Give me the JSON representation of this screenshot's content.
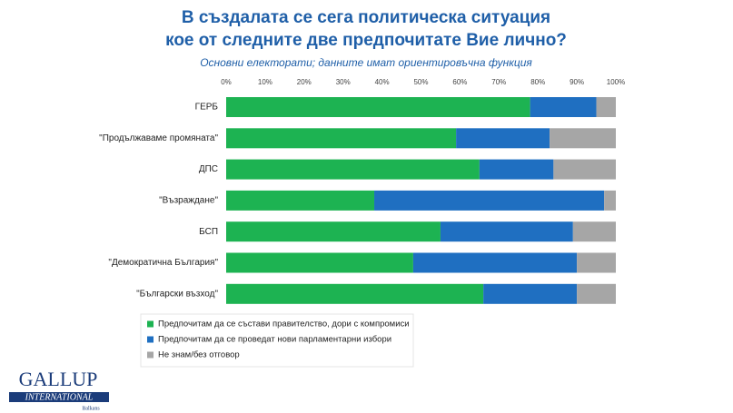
{
  "chart_data": {
    "type": "stacked-bar-horizontal",
    "title": [
      "В създалата се сега политическа ситуация",
      "кое от следните две предпочитате Вие лично?"
    ],
    "subtitle": "Основни електорати; данните имат ориентировъчна функция",
    "categories": [
      "ГЕРБ",
      "\"Продължаваме промяната\"",
      "ДПС",
      "\"Възраждане\"",
      "БСП",
      "\"Демократична България\"",
      "\"Български възход\""
    ],
    "series": [
      {
        "name": "Предпочитам да се състави правителство, дори с компромиси",
        "color": "#1db352",
        "values": [
          78,
          59,
          65,
          38,
          55,
          48,
          66
        ]
      },
      {
        "name": "Предпочитам да се проведат нови парламентарни избори",
        "color": "#1f6fc1",
        "values": [
          17,
          24,
          19,
          59,
          34,
          42,
          24
        ]
      },
      {
        "name": "Не знам/без отговор",
        "color": "#a6a6a6",
        "values": [
          5,
          17,
          16,
          3,
          11,
          10,
          10
        ]
      }
    ],
    "xlim": [
      0,
      100
    ],
    "xticks": [
      {
        "value": 0,
        "label": "0%"
      },
      {
        "value": 10,
        "label": "10%"
      },
      {
        "value": 20,
        "label": "20%"
      },
      {
        "value": 30,
        "label": "30%"
      },
      {
        "value": 40,
        "label": "40%"
      },
      {
        "value": 50,
        "label": "50%"
      },
      {
        "value": 60,
        "label": "60%"
      },
      {
        "value": 70,
        "label": "70%"
      },
      {
        "value": 80,
        "label": "80%"
      },
      {
        "value": 90,
        "label": "90%"
      },
      {
        "value": 100,
        "label": "100%"
      }
    ],
    "grid": false,
    "legend": "bottom"
  },
  "logo": {
    "name": "GALLUP",
    "band": "INTERNATIONAL",
    "region": "Balkans"
  }
}
